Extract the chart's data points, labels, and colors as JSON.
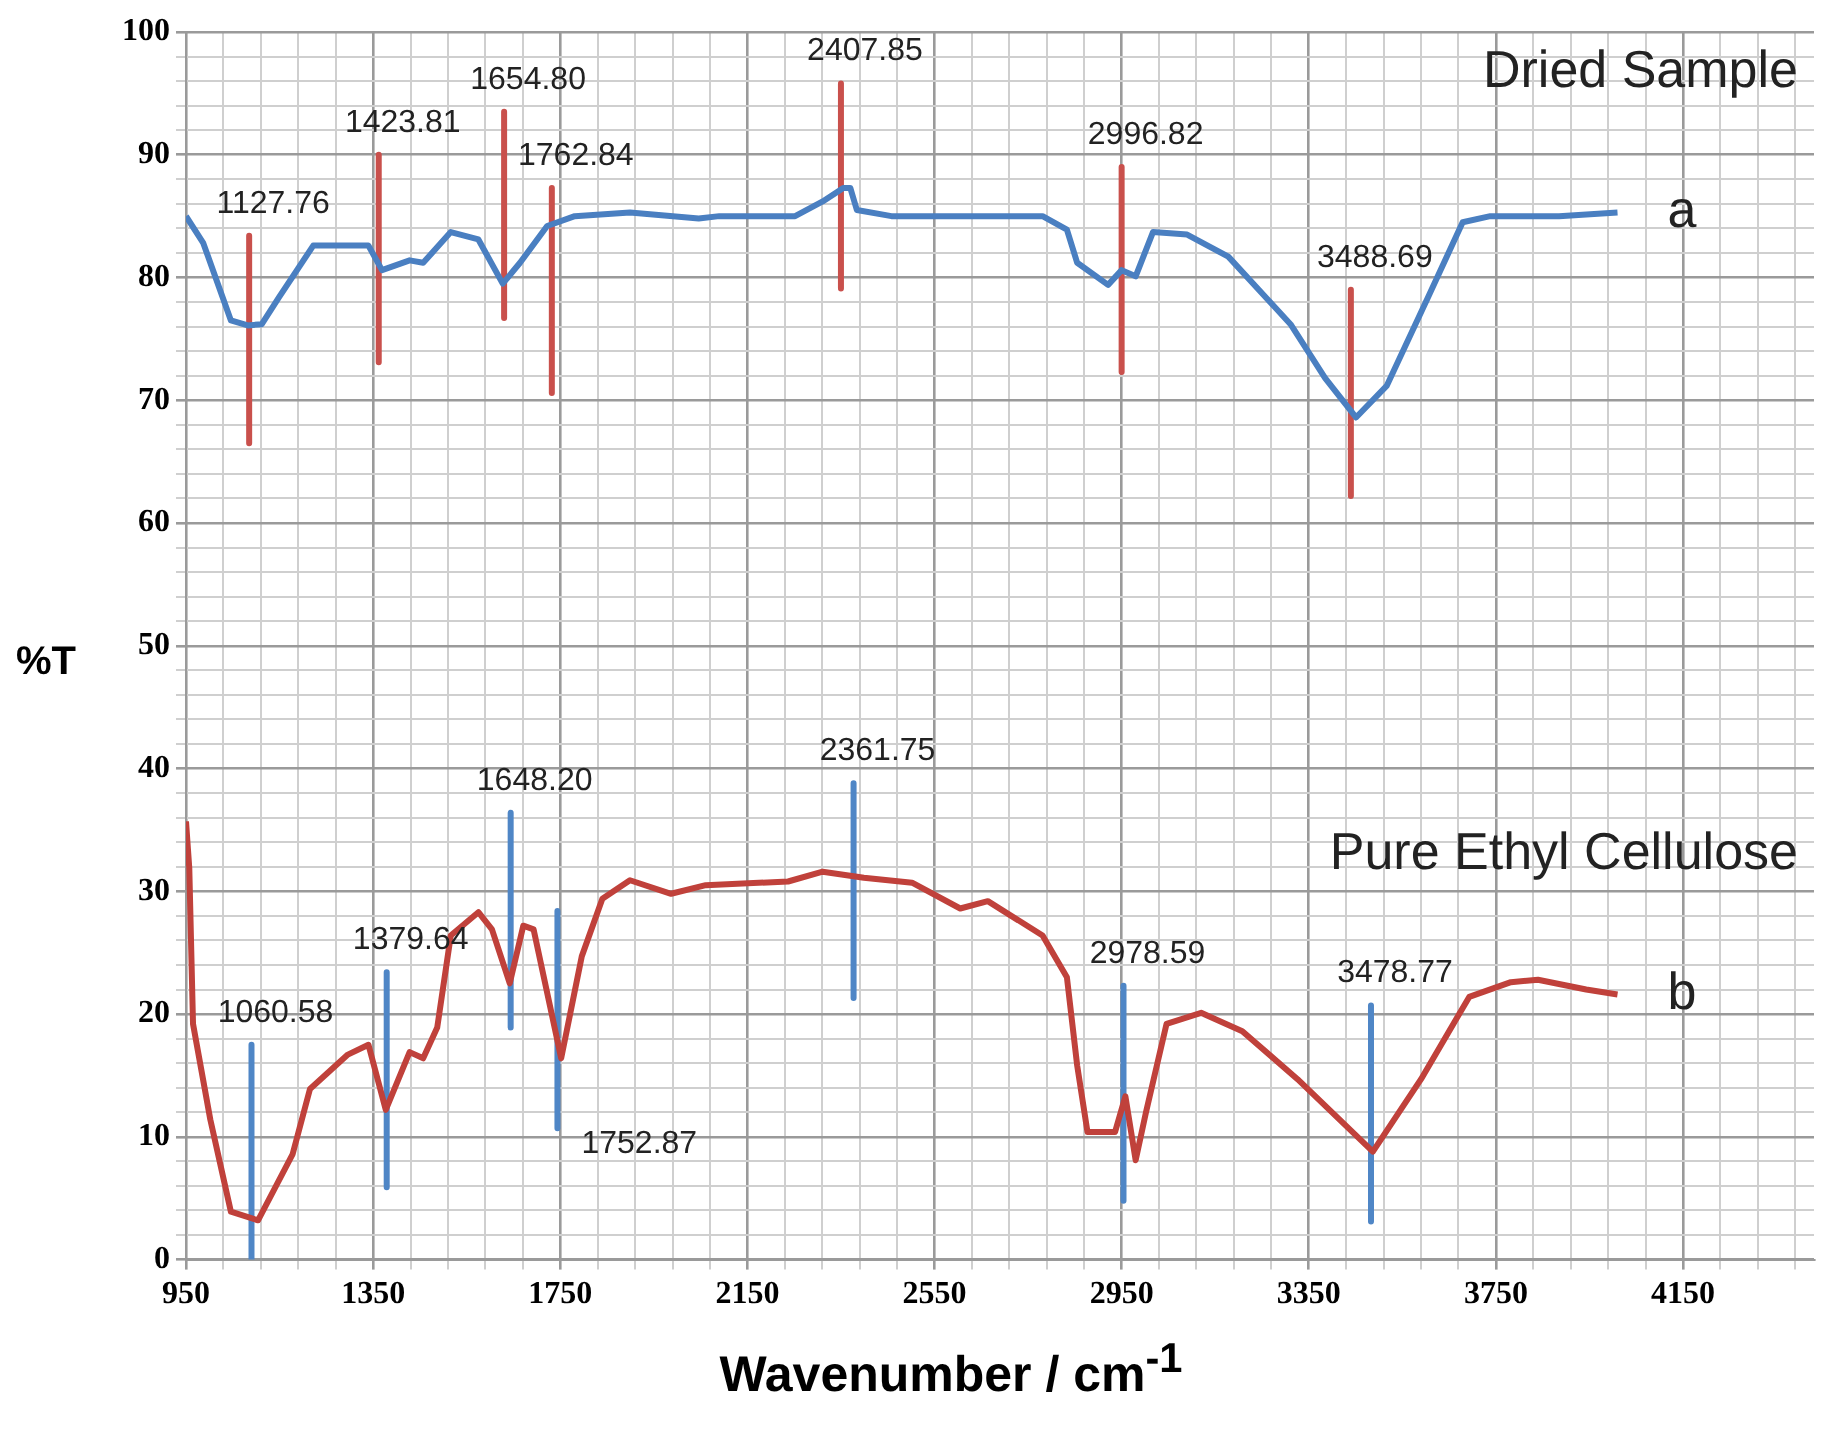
{
  "chart_data": {
    "type": "line",
    "xlabel": "Wavenumber / cm$^{-1}$",
    "ylabel": "%T",
    "xlim": [
      950,
      4430
    ],
    "ylim": [
      0,
      100
    ],
    "grid": true,
    "xticks": [
      950,
      {
        "value": 1030,
        "label": null
      },
      {
        "value": 1110,
        "label": null
      },
      {
        "value": 1190,
        "label": null
      },
      {
        "value": 1270,
        "label": null
      },
      1350,
      {
        "value": 1430,
        "label": null
      },
      {
        "value": 1510,
        "label": null
      },
      {
        "value": 1590,
        "label": null
      },
      {
        "value": 1670,
        "label": null
      },
      1750,
      {
        "value": 1830,
        "label": null
      },
      {
        "value": 1910,
        "label": null
      },
      {
        "value": 1990,
        "label": null
      },
      {
        "value": 2070,
        "label": null
      },
      2150,
      {
        "value": 2230,
        "label": null
      },
      {
        "value": 2310,
        "label": null
      },
      {
        "value": 2390,
        "label": null
      },
      {
        "value": 2470,
        "label": null
      },
      2550,
      {
        "value": 2630,
        "label": null
      },
      {
        "value": 2710,
        "label": null
      },
      {
        "value": 2790,
        "label": null
      },
      {
        "value": 2870,
        "label": null
      },
      2950,
      {
        "value": 3030,
        "label": null
      },
      {
        "value": 3110,
        "label": null
      },
      {
        "value": 3190,
        "label": null
      },
      {
        "value": 3270,
        "label": null
      },
      3350,
      {
        "value": 3430,
        "label": null
      },
      {
        "value": 3510,
        "label": null
      },
      {
        "value": 3590,
        "label": null
      },
      {
        "value": 3670,
        "label": null
      },
      3750,
      {
        "value": 3830,
        "label": null
      },
      {
        "value": 3910,
        "label": null
      },
      {
        "value": 3990,
        "label": null
      },
      {
        "value": 4070,
        "label": null
      },
      4150,
      {
        "value": 4230,
        "label": null
      },
      {
        "value": 4310,
        "label": null
      },
      {
        "value": 4390,
        "label": null
      }
    ],
    "yticks": [
      0,
      {
        "value": 2,
        "label": null
      },
      {
        "value": 4,
        "label": null
      },
      {
        "value": 6,
        "label": null
      },
      {
        "value": 8,
        "label": null
      },
      10,
      {
        "value": 12,
        "label": null
      },
      {
        "value": 14,
        "label": null
      },
      {
        "value": 16,
        "label": null
      },
      {
        "value": 18,
        "label": null
      },
      20,
      {
        "value": 22,
        "label": null
      },
      {
        "value": 24,
        "label": null
      },
      {
        "value": 26,
        "label": null
      },
      {
        "value": 28,
        "label": null
      },
      30,
      {
        "value": 32,
        "label": null
      },
      {
        "value": 34,
        "label": null
      },
      {
        "value": 36,
        "label": null
      },
      {
        "value": 38,
        "label": null
      },
      40,
      {
        "value": 42,
        "label": null
      },
      {
        "value": 44,
        "label": null
      },
      {
        "value": 46,
        "label": null
      },
      {
        "value": 48,
        "label": null
      },
      50,
      {
        "value": 52,
        "label": null
      },
      {
        "value": 54,
        "label": null
      },
      {
        "value": 56,
        "label": null
      },
      {
        "value": 58,
        "label": null
      },
      60,
      {
        "value": 62,
        "label": null
      },
      {
        "value": 64,
        "label": null
      },
      {
        "value": 66,
        "label": null
      },
      {
        "value": 68,
        "label": null
      },
      70,
      {
        "value": 72,
        "label": null
      },
      {
        "value": 74,
        "label": null
      },
      {
        "value": 76,
        "label": null
      },
      {
        "value": 78,
        "label": null
      },
      80,
      {
        "value": 82,
        "label": null
      },
      {
        "value": 84,
        "label": null
      },
      {
        "value": 86,
        "label": null
      },
      {
        "value": 88,
        "label": null
      },
      90,
      {
        "value": 92,
        "label": null
      },
      {
        "value": 94,
        "label": null
      },
      {
        "value": 96,
        "label": null
      },
      {
        "value": 98,
        "label": null
      },
      100
    ],
    "series": [
      {
        "name": "Dried Sample",
        "color": "#4a7fc1",
        "x": [
          950,
          987,
          1046,
          1082,
          1112,
          1149,
          1222,
          1340,
          1369,
          1428,
          1457,
          1516,
          1575,
          1627,
          1664,
          1722,
          1781,
          1899,
          2046,
          2090,
          2252,
          2311,
          2355,
          2370,
          2384,
          2458,
          2693,
          2781,
          2833,
          2855,
          2921,
          2950,
          2980,
          3017,
          3090,
          3178,
          3311,
          3385,
          3451,
          3517,
          3605,
          3679,
          3738,
          3885,
          4010
        ],
        "values": [
          85.0,
          82.8,
          76.5,
          76.1,
          76.2,
          78.4,
          82.6,
          82.6,
          80.6,
          81.4,
          81.2,
          83.7,
          83.1,
          79.5,
          81.2,
          84.2,
          85.0,
          85.3,
          84.8,
          85.0,
          85.0,
          86.2,
          87.3,
          87.3,
          85.5,
          85.0,
          85.0,
          85.0,
          83.9,
          81.2,
          79.4,
          80.6,
          80.1,
          83.7,
          83.5,
          81.7,
          76.2,
          71.8,
          68.6,
          71.2,
          78.4,
          84.5,
          85.0,
          85.0,
          85.3
        ]
      },
      {
        "name": "Pure Ethyl Cellulose",
        "color": "#c0413b",
        "x": [
          950,
          957,
          965,
          1002,
          1046,
          1104,
          1178,
          1215,
          1296,
          1340,
          1377,
          1428,
          1457,
          1487,
          1516,
          1575,
          1604,
          1642,
          1671,
          1693,
          1752,
          1796,
          1840,
          1899,
          1987,
          2061,
          2237,
          2311,
          2399,
          2502,
          2605,
          2664,
          2781,
          2833,
          2855,
          2877,
          2936,
          2958,
          2980,
          3002,
          3046,
          3120,
          3208,
          3326,
          3487,
          3590,
          3693,
          3782,
          3840,
          3943,
          4010
        ],
        "values": [
          35.7,
          31.9,
          19.2,
          11.4,
          3.9,
          3.2,
          8.6,
          13.9,
          16.7,
          17.5,
          12.2,
          16.9,
          16.4,
          18.9,
          26.4,
          28.3,
          26.9,
          22.5,
          27.2,
          26.9,
          16.4,
          24.7,
          29.4,
          30.9,
          29.8,
          30.5,
          30.8,
          31.6,
          31.1,
          30.7,
          28.6,
          29.2,
          26.4,
          23.0,
          15.8,
          10.4,
          10.4,
          13.3,
          8.1,
          12.0,
          19.2,
          20.1,
          18.6,
          14.7,
          8.8,
          14.7,
          21.4,
          22.6,
          22.8,
          22.0,
          21.6
        ]
      },
      {
        "color": "#c9504c",
        "x": [
          1085,
          1085
        ],
        "values": [
          83.4,
          66.5
        ]
      },
      {
        "color": "#c9504c",
        "x": [
          1362,
          1362
        ],
        "values": [
          90.0,
          73.1
        ]
      },
      {
        "color": "#c9504c",
        "x": [
          1630,
          1630
        ],
        "values": [
          93.5,
          76.7
        ]
      },
      {
        "color": "#c9504c",
        "x": [
          1732,
          1732
        ],
        "values": [
          87.3,
          70.6
        ]
      },
      {
        "color": "#c9504c",
        "x": [
          2350,
          2350
        ],
        "values": [
          95.8,
          79.1
        ]
      },
      {
        "color": "#c9504c",
        "x": [
          2950,
          2950
        ],
        "values": [
          89.0,
          72.3
        ]
      },
      {
        "color": "#c9504c",
        "x": [
          3440,
          3440
        ],
        "values": [
          79.0,
          62.2
        ]
      },
      {
        "color": "#4f86c6",
        "x": [
          1090,
          1090
        ],
        "values": [
          17.5,
          0
        ]
      },
      {
        "color": "#4f86c6",
        "x": [
          1379,
          1379
        ],
        "values": [
          23.4,
          5.9
        ]
      },
      {
        "color": "#4f86c6",
        "x": [
          1644,
          1644
        ],
        "values": [
          36.4,
          18.9
        ]
      },
      {
        "color": "#4f86c6",
        "x": [
          1744,
          1744
        ],
        "values": [
          28.4,
          10.7
        ]
      },
      {
        "color": "#4f86c6",
        "x": [
          2377,
          2377
        ],
        "values": [
          38.8,
          21.3
        ]
      },
      {
        "color": "#4f86c6",
        "x": [
          2954,
          2954
        ],
        "values": [
          22.3,
          4.8
        ]
      },
      {
        "color": "#4f86c6",
        "x": [
          3483,
          3483
        ],
        "values": [
          20.7,
          3.1
        ]
      }
    ],
    "annotations": [
      {
        "text": "1127.76",
        "x": 1085,
        "y": 83.4
      },
      {
        "text": "1423.81",
        "x": 1362,
        "y": 90.0
      },
      {
        "text": "1654.80",
        "x": 1630,
        "y": 93.5
      },
      {
        "text": "1762.84",
        "x": 1732,
        "y": 87.3
      },
      {
        "text": "2407.85",
        "x": 2350,
        "y": 95.8
      },
      {
        "text": "2996.82",
        "x": 2950,
        "y": 89.0
      },
      {
        "text": "3488.69",
        "x": 3440,
        "y": 79.0
      },
      {
        "text": "a",
        "x": 4010,
        "y": 85.3
      },
      {
        "text": "1060.58",
        "x": 1090,
        "y": 17.5
      },
      {
        "text": "1379.64",
        "x": 1379,
        "y": 23.4
      },
      {
        "text": "1648.20",
        "x": 1644,
        "y": 36.4
      },
      {
        "text": "1752.87",
        "x": 1744,
        "y": 10.7
      },
      {
        "text": "2361.75",
        "x": 2377,
        "y": 38.8
      },
      {
        "text": "2978.59",
        "x": 2954,
        "y": 22.3
      },
      {
        "text": "3478.77",
        "x": 3483,
        "y": 20.7
      },
      {
        "text": "b",
        "x": 4010,
        "y": 21.6
      }
    ]
  }
}
